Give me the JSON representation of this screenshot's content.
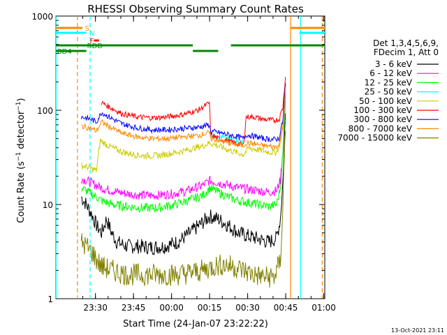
{
  "chart_data": {
    "type": "line",
    "title": "RHESSI Observing Summary Count Rates",
    "xlabel": "Start Time (24-Jan-07 23:22:22)",
    "ylabel": "Count Rate (s⁻¹ detector⁻¹)",
    "ylabel_base": "Count Rate (s",
    "ylabel_mid": " detector",
    "ylabel_end": ")",
    "ylabel_sup": "−1",
    "yscale": "log",
    "ylim": [
      1,
      1000
    ],
    "xlim_minutes": [
      -8,
      98
    ],
    "yticks": [
      {
        "v": 1,
        "label": "1"
      },
      {
        "v": 10,
        "label": "10"
      },
      {
        "v": 100,
        "label": "100"
      },
      {
        "v": 1000,
        "label": "1000"
      }
    ],
    "xticks": [
      {
        "t": 7.6,
        "label": "23:30"
      },
      {
        "t": 22.6,
        "label": "23:45"
      },
      {
        "t": 37.6,
        "label": "00:00"
      },
      {
        "t": 52.6,
        "label": "00:15"
      },
      {
        "t": 67.6,
        "label": "00:30"
      },
      {
        "t": 82.6,
        "label": "00:45"
      },
      {
        "t": 97.6,
        "label": "01:00"
      }
    ],
    "legend": {
      "position": "right",
      "header": [
        "Det 1,3,4,5,6,9,",
        "FDecim 1, Att 0"
      ]
    },
    "series": [
      {
        "name": "3 - 6 keV",
        "color": "#000000",
        "points": [
          [
            2,
            12
          ],
          [
            4,
            10
          ],
          [
            6,
            8
          ],
          [
            8,
            6
          ],
          [
            10,
            5
          ],
          [
            12,
            7
          ],
          [
            14,
            5
          ],
          [
            16,
            4
          ],
          [
            18,
            3.8
          ],
          [
            20,
            3.6
          ],
          [
            25,
            3.6
          ],
          [
            30,
            3.5
          ],
          [
            35,
            3.6
          ],
          [
            40,
            4.0
          ],
          [
            45,
            5.0
          ],
          [
            50,
            6.5
          ],
          [
            52.6,
            7.5
          ],
          [
            56,
            7.0
          ],
          [
            60,
            6.0
          ],
          [
            64,
            5.0
          ],
          [
            66,
            4.8
          ],
          [
            68,
            4.6
          ],
          [
            72,
            4.3
          ],
          [
            76,
            4.0
          ],
          [
            79,
            4.4
          ],
          [
            80.5,
            7
          ],
          [
            81.5,
            18
          ],
          [
            82,
            40
          ],
          [
            82.6,
            110
          ]
        ]
      },
      {
        "name": "6 - 12 keV",
        "color": "#ff00ff",
        "points": [
          [
            2,
            19
          ],
          [
            6,
            17
          ],
          [
            8,
            16
          ],
          [
            10,
            15
          ],
          [
            14,
            14
          ],
          [
            20,
            13
          ],
          [
            26,
            12.5
          ],
          [
            32,
            12.5
          ],
          [
            38,
            13
          ],
          [
            44,
            14
          ],
          [
            50,
            16
          ],
          [
            52.6,
            18
          ],
          [
            56,
            17
          ],
          [
            60,
            16
          ],
          [
            64,
            15
          ],
          [
            68,
            14.5
          ],
          [
            72,
            14
          ],
          [
            76,
            13.5
          ],
          [
            79,
            14
          ],
          [
            80.5,
            18
          ],
          [
            81.5,
            40
          ],
          [
            82,
            80
          ],
          [
            82.6,
            160
          ]
        ]
      },
      {
        "name": "12 - 25 keV",
        "color": "#00ff00",
        "points": [
          [
            2,
            15
          ],
          [
            6,
            13
          ],
          [
            8,
            12
          ],
          [
            10,
            11
          ],
          [
            14,
            10
          ],
          [
            20,
            9.5
          ],
          [
            26,
            9.2
          ],
          [
            32,
            9.2
          ],
          [
            38,
            9.8
          ],
          [
            44,
            11
          ],
          [
            50,
            12.5
          ],
          [
            52.6,
            15
          ],
          [
            56,
            13.5
          ],
          [
            60,
            12
          ],
          [
            64,
            11
          ],
          [
            68,
            10.5
          ],
          [
            72,
            10
          ],
          [
            76,
            9.5
          ],
          [
            79,
            10
          ],
          [
            80.5,
            15
          ],
          [
            81.5,
            35
          ],
          [
            82,
            70
          ],
          [
            82.6,
            150
          ]
        ]
      },
      {
        "name": "25 - 50 keV",
        "color": "#00ffff",
        "points": [
          [
            52.6,
            55
          ],
          [
            56,
            53
          ],
          [
            60,
            50
          ],
          [
            64,
            48
          ],
          [
            66,
            47
          ]
        ]
      },
      {
        "name": "50 - 100 keV",
        "color": "#cccc00",
        "points": [
          [
            2,
            26
          ],
          [
            6,
            24
          ],
          [
            8,
            23
          ],
          [
            9.5,
            48
          ],
          [
            12,
            43
          ],
          [
            16,
            38
          ],
          [
            20,
            35
          ],
          [
            26,
            33
          ],
          [
            32,
            33
          ],
          [
            38,
            35
          ],
          [
            44,
            38
          ],
          [
            50,
            42
          ],
          [
            52.6,
            45
          ],
          [
            56,
            42
          ],
          [
            60,
            38
          ],
          [
            64,
            35
          ],
          [
            66,
            34
          ],
          [
            68,
            40
          ],
          [
            72,
            38
          ],
          [
            76,
            36
          ],
          [
            79,
            36
          ],
          [
            80.5,
            45
          ],
          [
            81.5,
            75
          ],
          [
            82,
            110
          ],
          [
            82.6,
            180
          ]
        ]
      },
      {
        "name": "100 - 300 keV",
        "color": "#ff0000",
        "points": [
          [
            10,
            120
          ],
          [
            14,
            105
          ],
          [
            18,
            92
          ],
          [
            24,
            85
          ],
          [
            30,
            83
          ],
          [
            36,
            85
          ],
          [
            42,
            90
          ],
          [
            48,
            100
          ],
          [
            52.6,
            120
          ],
          [
            53,
            55
          ],
          [
            56,
            50
          ],
          [
            60,
            47
          ],
          [
            64,
            44
          ],
          [
            66,
            43
          ],
          [
            67,
            85
          ],
          [
            70,
            85
          ],
          [
            74,
            80
          ],
          [
            78,
            78
          ],
          [
            80,
            80
          ],
          [
            81.5,
            110
          ],
          [
            82,
            160
          ],
          [
            82.6,
            240
          ]
        ]
      },
      {
        "name": "300 - 800 keV",
        "color": "#0000ff",
        "points": [
          [
            2,
            85
          ],
          [
            6,
            80
          ],
          [
            8,
            75
          ],
          [
            10,
            95
          ],
          [
            14,
            82
          ],
          [
            18,
            72
          ],
          [
            24,
            65
          ],
          [
            30,
            62
          ],
          [
            36,
            62
          ],
          [
            42,
            64
          ],
          [
            48,
            66
          ],
          [
            52.6,
            70
          ],
          [
            53,
            60
          ],
          [
            56,
            58
          ],
          [
            60,
            55
          ],
          [
            64,
            52
          ],
          [
            66,
            50
          ],
          [
            67,
            55
          ],
          [
            70,
            53
          ],
          [
            74,
            50
          ],
          [
            78,
            49
          ],
          [
            80,
            50
          ],
          [
            81.5,
            80
          ],
          [
            82,
            130
          ],
          [
            82.6,
            200
          ]
        ]
      },
      {
        "name": "800 - 7000 keV",
        "color": "#ff8800",
        "points": [
          [
            2,
            68
          ],
          [
            6,
            64
          ],
          [
            8,
            60
          ],
          [
            10,
            75
          ],
          [
            14,
            65
          ],
          [
            18,
            57
          ],
          [
            24,
            52
          ],
          [
            30,
            50
          ],
          [
            36,
            50
          ],
          [
            42,
            52
          ],
          [
            48,
            54
          ],
          [
            52.6,
            58
          ],
          [
            53,
            50
          ],
          [
            56,
            48
          ],
          [
            60,
            45
          ],
          [
            64,
            43
          ],
          [
            66,
            42
          ],
          [
            67,
            45
          ],
          [
            70,
            44
          ],
          [
            74,
            42
          ],
          [
            78,
            41
          ],
          [
            80,
            42
          ],
          [
            81.5,
            70
          ],
          [
            82,
            110
          ],
          [
            82.6,
            180
          ]
        ]
      },
      {
        "name": "7000 - 15000 keV",
        "color": "#808000",
        "points": [
          [
            2,
            4
          ],
          [
            6,
            3.2
          ],
          [
            8,
            2.6
          ],
          [
            10,
            2.2
          ],
          [
            14,
            2.0
          ],
          [
            20,
            1.8
          ],
          [
            30,
            1.8
          ],
          [
            40,
            1.8
          ],
          [
            46,
            1.9
          ],
          [
            50,
            2.0
          ],
          [
            54,
            2.2
          ],
          [
            58,
            2.3
          ],
          [
            62,
            2.2
          ],
          [
            66,
            2.0
          ],
          [
            70,
            1.8
          ],
          [
            74,
            1.7
          ],
          [
            78,
            1.7
          ],
          [
            80.5,
            2.5
          ],
          [
            81.5,
            10
          ],
          [
            82,
            30
          ],
          [
            82.6,
            70
          ]
        ]
      }
    ],
    "flag_bars": [
      {
        "label": "S",
        "color": "#ff8800",
        "y": 40,
        "segments": [
          [
            -8,
            2.5
          ],
          [
            84.5,
            98
          ]
        ]
      },
      {
        "label": "N",
        "color": "#00ffff",
        "y": 47,
        "segments": [
          [
            -8,
            4
          ],
          [
            88,
            98
          ]
        ]
      },
      {
        "label": "F",
        "color": "#ff0000",
        "y": 58,
        "segments": [
          [
            7,
            9
          ]
        ]
      },
      {
        "label": "RDD",
        "color": "#008800",
        "y": 65,
        "segments": [
          [
            -8,
            46
          ],
          [
            61,
            98
          ]
        ]
      },
      {
        "label": "BD4",
        "color": "#008800",
        "y": 73,
        "segments": [
          [
            -8,
            4
          ]
        ]
      },
      {
        "label": "",
        "color": "#008800",
        "y": 73,
        "segments": [
          [
            46,
            56
          ]
        ]
      }
    ],
    "vertical_markers": [
      {
        "t": -7.9,
        "color": "#00ffff",
        "dashed": false
      },
      {
        "t": 0.5,
        "color": "#ff8800",
        "dashed": true
      },
      {
        "t": 5.5,
        "color": "#00ffff",
        "dashed": true
      },
      {
        "t": 84.5,
        "color": "#ff8800",
        "dashed": false
      },
      {
        "t": 88.5,
        "color": "#00ffff",
        "dashed": false
      },
      {
        "t": 97,
        "color": "#ff8800",
        "dashed": true
      }
    ],
    "footer_timestamp": "13-Oct-2021 23:11"
  }
}
